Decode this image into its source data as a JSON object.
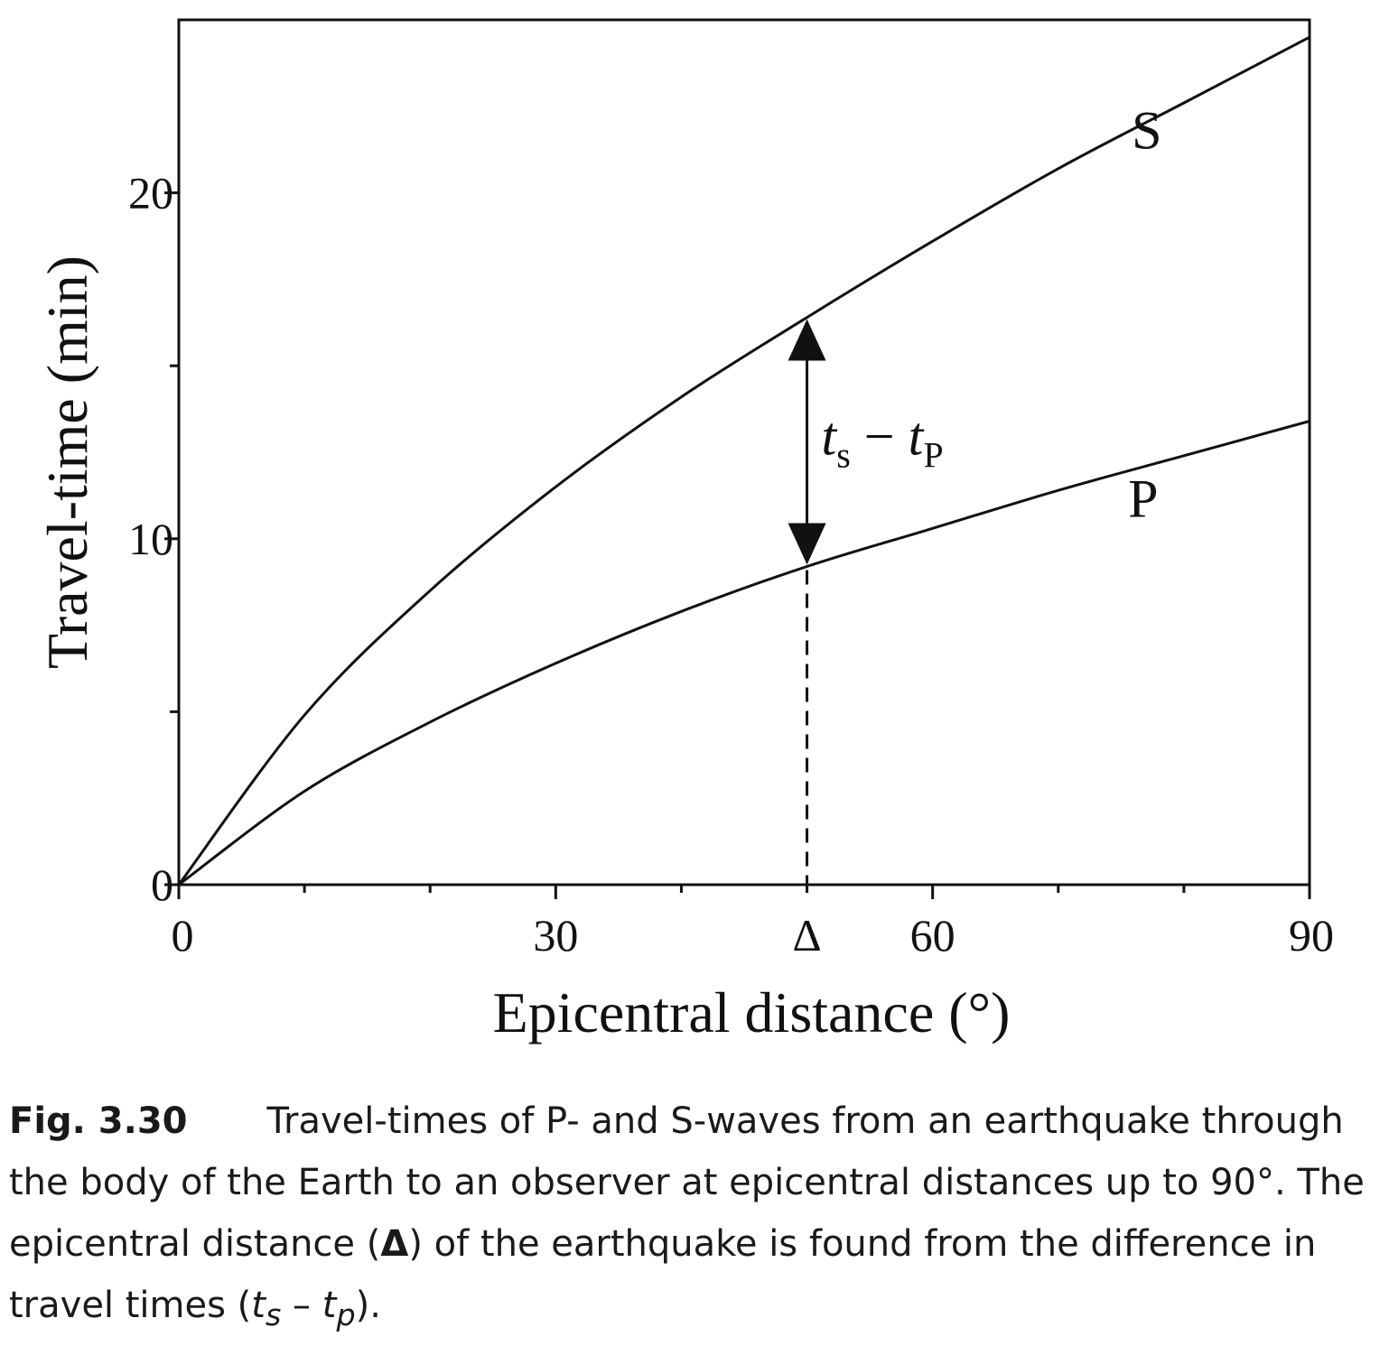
{
  "chart_data": {
    "type": "line",
    "xlabel": "Epicentral distance  (°)",
    "ylabel": "Travel-time (min)",
    "xlim": [
      0,
      90
    ],
    "ylim": [
      0,
      25
    ],
    "x_ticks_major": [
      0,
      30,
      60,
      90
    ],
    "x_ticks_minor": [
      10,
      20,
      40,
      50,
      70,
      80
    ],
    "y_ticks_major": [
      0,
      10,
      20
    ],
    "y_ticks_minor": [
      5,
      15
    ],
    "x_tick_labels": [
      "0",
      "30",
      "60",
      "90"
    ],
    "y_tick_labels": [
      "0",
      "10",
      "20"
    ],
    "grid": false,
    "legend": "none",
    "series": [
      {
        "name": "S",
        "x": [
          0,
          10,
          20,
          30,
          40,
          50,
          60,
          70,
          80,
          90
        ],
        "y": [
          0,
          4.9,
          8.5,
          11.5,
          14.1,
          16.4,
          18.6,
          20.7,
          22.6,
          24.5
        ]
      },
      {
        "name": "P",
        "x": [
          0,
          10,
          20,
          30,
          40,
          50,
          60,
          70,
          80,
          90
        ],
        "y": [
          0,
          2.7,
          4.7,
          6.4,
          7.9,
          9.2,
          10.3,
          11.4,
          12.4,
          13.4
        ]
      }
    ],
    "annotations": {
      "delta_x": 50,
      "delta_label": "Δ",
      "difference_label": {
        "t1": "t",
        "s1": "s",
        "minus": " − ",
        "t2": "t",
        "s2": "P"
      }
    }
  },
  "caption": {
    "figure_number": "Fig. 3.30",
    "text_1": "Travel-times of P- and S-waves from an earthquake through the body of the Earth to an observer at epicentral distances up to 90°. The epicentral distance (",
    "delta_symbol": "Δ",
    "text_2": ") of the earthquake is found from the difference in travel times (",
    "t1": "t",
    "s1": "s",
    "minus": " – ",
    "t2": "t",
    "s2": "p",
    "text_3": ")."
  }
}
